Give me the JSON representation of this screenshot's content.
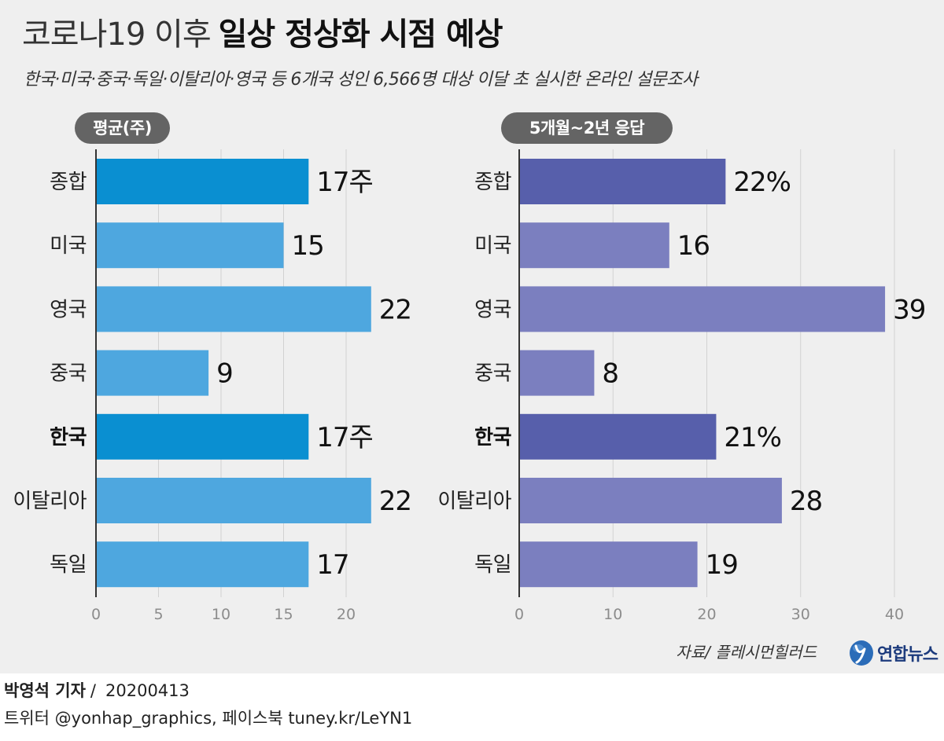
{
  "title": {
    "prefix": "코로나19 이후",
    "main": "일상 정상화 시점 예상"
  },
  "subtitle": "한국·미국·중국·독일·이탈리아·영국 등 6개국 성인 6,566명 대상 이달 초 실시한 온라인 설문조사",
  "source": "자료/ 플레시먼힐러드",
  "logo": {
    "icon": "yonhap-logo-icon",
    "text": "연합뉴스"
  },
  "credits": {
    "author": "박영석 기자",
    "separator": "/",
    "date": "20200413",
    "social": "트위터 @yonhap_graphics, 페이스북 tuney.kr/LeYN1"
  },
  "colors": {
    "background": "#efefef",
    "footer_background": "#ffffff",
    "pill": "#646464",
    "axis": "#333333",
    "grid": "#d2d2d2",
    "tick_text": "#8c8c8c",
    "logo_blue": "#1c3b7d"
  },
  "chart_data": [
    {
      "type": "bar",
      "orientation": "horizontal",
      "title": "평균(주)",
      "categories": [
        "종합",
        "미국",
        "영국",
        "중국",
        "한국",
        "이탈리아",
        "독일"
      ],
      "values": [
        17,
        15,
        22,
        9,
        17,
        22,
        17
      ],
      "value_labels": [
        "17주",
        "15",
        "22",
        "9",
        "17주",
        "22",
        "17"
      ],
      "highlight": [
        "종합",
        "한국"
      ],
      "bold_labels": [
        "한국"
      ],
      "xlim": [
        0,
        20
      ],
      "xticks": [
        0,
        5,
        10,
        15,
        20
      ],
      "grid": true,
      "colors": {
        "bar": "#4ea7df",
        "highlight": "#0a8fd1"
      }
    },
    {
      "type": "bar",
      "orientation": "horizontal",
      "title": "5개월~2년 응답",
      "categories": [
        "종합",
        "미국",
        "영국",
        "중국",
        "한국",
        "이탈리아",
        "독일"
      ],
      "values": [
        22,
        16,
        39,
        8,
        21,
        28,
        19
      ],
      "value_labels": [
        "22%",
        "16",
        "39",
        "8",
        "21%",
        "28",
        "19"
      ],
      "highlight": [
        "종합",
        "한국"
      ],
      "bold_labels": [
        "한국"
      ],
      "xlim": [
        0,
        40
      ],
      "xticks": [
        0,
        10,
        20,
        30,
        40
      ],
      "grid": true,
      "colors": {
        "bar": "#7b7fbf",
        "highlight": "#575fab"
      }
    }
  ]
}
